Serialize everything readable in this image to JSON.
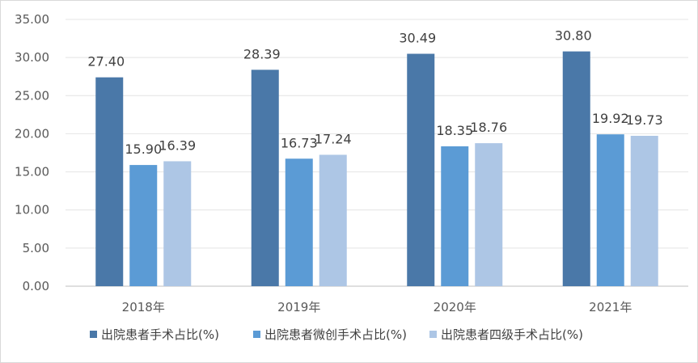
{
  "chart_data": {
    "type": "bar",
    "categories": [
      "2018年",
      "2019年",
      "2020年",
      "2021年"
    ],
    "ylim": [
      0,
      35
    ],
    "y_ticks": [
      "0.00",
      "5.00",
      "10.00",
      "15.00",
      "20.00",
      "25.00",
      "30.00",
      "35.00"
    ],
    "grid": true,
    "legend_position": "bottom",
    "series": [
      {
        "name": "出院患者手术占比(%)",
        "values": [
          27.4,
          28.39,
          30.49,
          30.8
        ],
        "labels": [
          "27.40",
          "28.39",
          "30.49",
          "30.80"
        ],
        "color": "#4a78a8"
      },
      {
        "name": "出院患者微创手术占比(%)",
        "values": [
          15.9,
          16.73,
          18.35,
          19.92
        ],
        "labels": [
          "15.90",
          "16.73",
          "18.35",
          "19.92"
        ],
        "color": "#5b9bd5"
      },
      {
        "name": "出院患者四级手术占比(%)",
        "values": [
          16.39,
          17.24,
          18.76,
          19.73
        ],
        "labels": [
          "16.39",
          "17.24",
          "18.76",
          "19.73"
        ],
        "color": "#adc6e5"
      }
    ]
  }
}
